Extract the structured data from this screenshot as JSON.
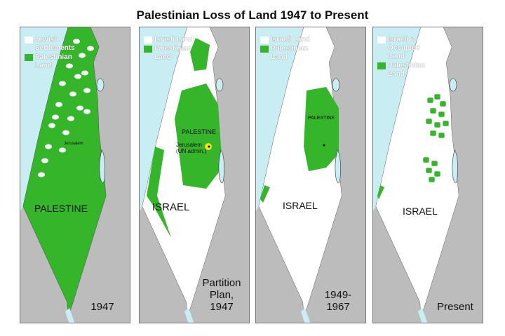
{
  "title": "Palestinian Loss of Land 1947 to Present",
  "colors": {
    "sea": "#c8eef3",
    "neighbor_land": "#bcbcbc",
    "palestinian": "#35b52a",
    "israeli": "#ffffff",
    "jerusalem_marker": "#f2e21a"
  },
  "panels": [
    {
      "caption": "1947",
      "legend": [
        {
          "label": "Jewish Settlements",
          "color": "#ffffff"
        },
        {
          "label": "Palestinian Land",
          "color": "#35b52a"
        }
      ],
      "map_labels": {
        "main": "PALESTINE",
        "city": "Jerusalem"
      }
    },
    {
      "caption": "Partition Plan, 1947",
      "legend": [
        {
          "label": "Israeli Land",
          "color": "#ffffff"
        },
        {
          "label": "Palestinian Land",
          "color": "#35b52a"
        }
      ],
      "map_labels": {
        "main": "ISRAEL",
        "region": "PALESTINE",
        "city": "Jerusalem (UN admin.)"
      }
    },
    {
      "caption": "1949-1967",
      "legend": [
        {
          "label": "Israeli Land",
          "color": "#ffffff"
        },
        {
          "label": "Palestinian Land",
          "color": "#35b52a"
        }
      ],
      "map_labels": {
        "main": "ISRAEL",
        "region": "PALESTINE"
      }
    },
    {
      "caption": "Present",
      "legend": [
        {
          "label": "Israeli & Occupied Land",
          "color": "#ffffff"
        },
        {
          "label": "Palestinian Land",
          "color": "#35b52a"
        }
      ],
      "map_labels": {
        "main": "ISRAEL"
      }
    }
  ]
}
